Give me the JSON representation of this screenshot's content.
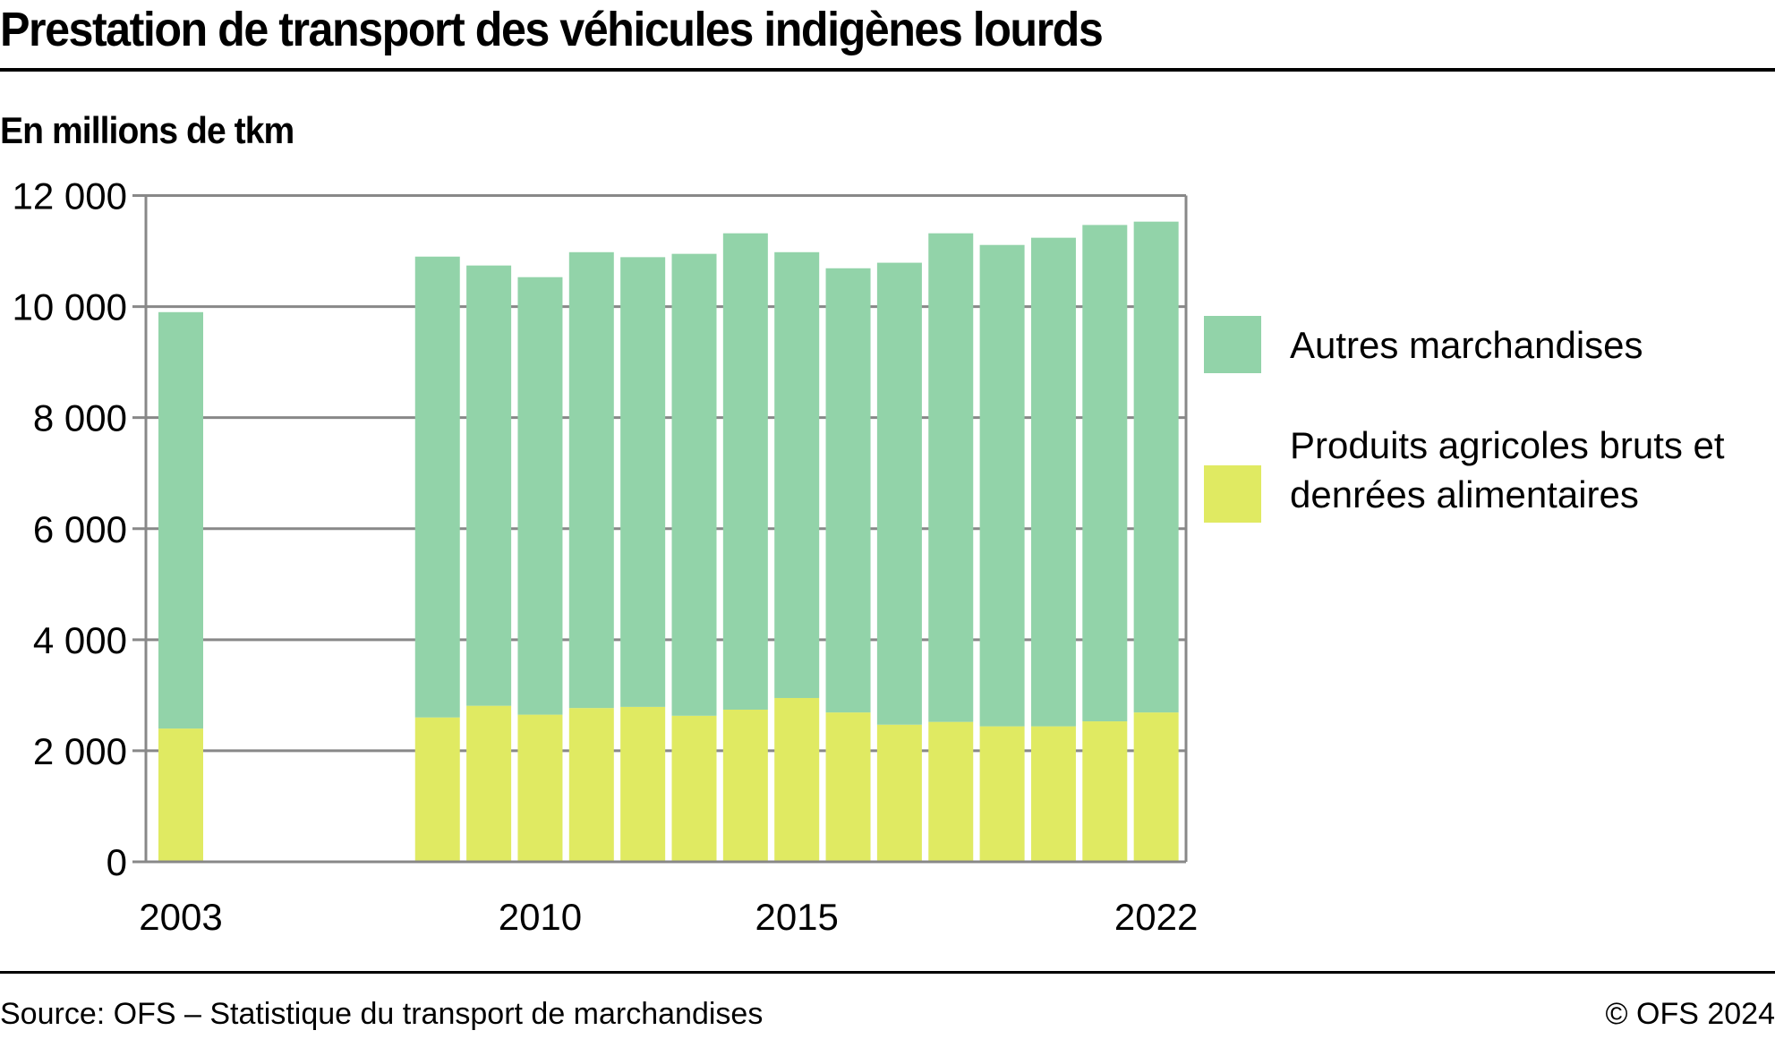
{
  "header": {
    "title": "Prestation de transport des véhicules indigènes lourds",
    "subtitle": "En millions de tkm"
  },
  "footer": {
    "source": "Source: OFS – Statistique du transport de marchandises",
    "copyright": "© OFS 2024"
  },
  "colors": {
    "autres": "#92d3a9",
    "agricoles": "#e0ea62",
    "grid": "#888888",
    "text": "#000000"
  },
  "legend": [
    {
      "label": "Autres marchandises",
      "color": "#92d3a9"
    },
    {
      "label": "Produits agricoles bruts et denrées alimentaires",
      "color": "#e0ea62"
    }
  ],
  "chart_data": {
    "type": "bar",
    "stacked": true,
    "title": "Prestation de transport des véhicules indigènes lourds",
    "subtitle": "En millions de tkm",
    "xlabel": "",
    "ylabel": "En millions de tkm",
    "ylim": [
      0,
      12000
    ],
    "yticks": [
      0,
      2000,
      4000,
      6000,
      8000,
      10000,
      12000
    ],
    "ytick_labels": [
      "0",
      "2 000",
      "4 000",
      "6 000",
      "8 000",
      "10 000",
      "12 000"
    ],
    "x_slots": [
      2003,
      2004,
      2005,
      2006,
      2007,
      2008,
      2009,
      2010,
      2011,
      2012,
      2013,
      2014,
      2015,
      2016,
      2017,
      2018,
      2019,
      2020,
      2021,
      2022
    ],
    "categories": [
      "2003",
      "2008",
      "2009",
      "2010",
      "2011",
      "2012",
      "2013",
      "2014",
      "2015",
      "2016",
      "2017",
      "2018",
      "2019",
      "2020",
      "2021",
      "2022"
    ],
    "xtick_labels": [
      "2003",
      "2010",
      "2015",
      "2022"
    ],
    "grid": true,
    "legend_position": "right",
    "series": [
      {
        "name": "Produits agricoles bruts et denrées alimentaires",
        "color": "#e0ea62",
        "values": [
          2400,
          2600,
          2810,
          2650,
          2770,
          2790,
          2630,
          2740,
          2950,
          2690,
          2470,
          2520,
          2440,
          2440,
          2530,
          2690
        ]
      },
      {
        "name": "Autres marchandises",
        "color": "#92d3a9",
        "values": [
          7500,
          8300,
          7930,
          7880,
          8210,
          8100,
          8320,
          8580,
          8030,
          8000,
          8320,
          8800,
          8670,
          8800,
          8940,
          8840
        ]
      }
    ],
    "totals": [
      9900,
      10900,
      10740,
      10530,
      10980,
      10890,
      10950,
      11320,
      10980,
      10690,
      10790,
      11320,
      11110,
      11240,
      11470,
      11530
    ]
  }
}
